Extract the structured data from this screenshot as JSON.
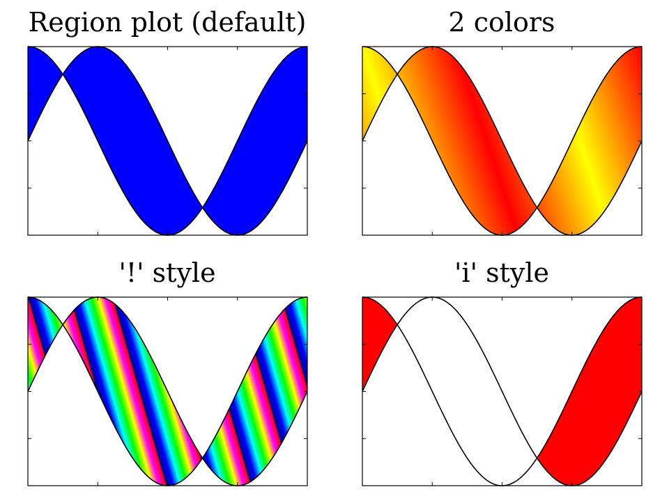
{
  "chart_data": [
    {
      "type": "area",
      "title": "Region plot (default)",
      "xlim": [
        0,
        3.14159
      ],
      "ylim": [
        -1,
        1
      ],
      "x_ticks": 4,
      "y_ticks": 4,
      "series": [
        {
          "function": "sin(2*x)"
        },
        {
          "function": "cos(2*x)"
        }
      ],
      "fill": {
        "style": "solid",
        "where": "all",
        "colors": [
          "#0000ff"
        ]
      }
    },
    {
      "type": "area",
      "title": "2 colors",
      "xlim": [
        0,
        3.14159
      ],
      "ylim": [
        -1,
        1
      ],
      "x_ticks": 4,
      "y_ticks": 4,
      "series": [
        {
          "function": "sin(2*x)"
        },
        {
          "function": "cos(2*x)"
        }
      ],
      "fill": {
        "style": "gradient",
        "where": "all",
        "colors": [
          "#ffff00",
          "#ff0000"
        ]
      }
    },
    {
      "type": "area",
      "title": "'!' style",
      "xlim": [
        0,
        3.14159
      ],
      "ylim": [
        -1,
        1
      ],
      "x_ticks": 4,
      "y_ticks": 4,
      "series": [
        {
          "function": "sin(2*x)"
        },
        {
          "function": "cos(2*x)"
        }
      ],
      "fill": {
        "style": "rainbow-stripes",
        "where": "all",
        "colors": [
          "#000080",
          "#0000ff",
          "#00ffff",
          "#00ff00",
          "#ffff00",
          "#ff00ff",
          "#ff0000"
        ]
      }
    },
    {
      "type": "area",
      "title": "'i' style",
      "xlim": [
        0,
        3.14159
      ],
      "ylim": [
        -1,
        1
      ],
      "x_ticks": 4,
      "y_ticks": 4,
      "series": [
        {
          "function": "sin(2*x)"
        },
        {
          "function": "cos(2*x)"
        }
      ],
      "fill": {
        "style": "solid",
        "where": "cos(2*x) > sin(2*x)",
        "colors": [
          "#ff0000"
        ]
      }
    }
  ]
}
